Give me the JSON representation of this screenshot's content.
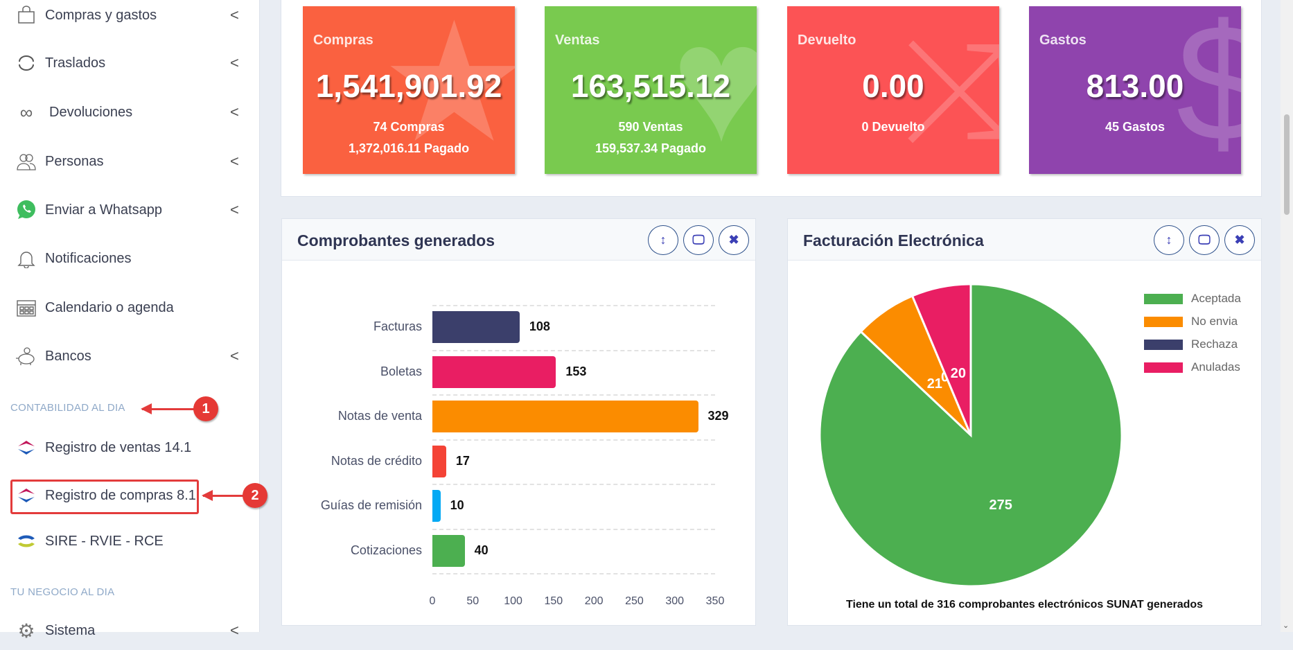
{
  "sidebar": {
    "items": [
      {
        "label": "Compras y gastos",
        "icon": "shopping-bag-icon",
        "chevron": "<"
      },
      {
        "label": "Traslados",
        "icon": "refresh-icon",
        "chevron": "<"
      },
      {
        "label": "Devoluciones",
        "icon": "infinity-icon",
        "chevron": "<"
      },
      {
        "label": "Personas",
        "icon": "users-icon",
        "chevron": "<"
      },
      {
        "label": "Enviar a Whatsapp",
        "icon": "whatsapp-icon",
        "chevron": "<"
      },
      {
        "label": "Notificaciones",
        "icon": "bell-icon"
      },
      {
        "label": "Calendario o agenda",
        "icon": "calendar-icon"
      },
      {
        "label": "Bancos",
        "icon": "piggy-bank-icon",
        "chevron": "<"
      }
    ],
    "section1": "CONTABILIDAD AL DIA",
    "accounting": [
      {
        "label": "Registro de ventas 14.1"
      },
      {
        "label": "Registro de compras 8.1"
      },
      {
        "label": "SIRE - RVIE - RCE"
      }
    ],
    "section2": "TU NEGOCIO AL DIA",
    "partial": "Sistema",
    "annotations": [
      "1",
      "2"
    ]
  },
  "cards": [
    {
      "title": "Compras",
      "value": "1,541,901.92",
      "line1": "74 Compras",
      "line2": "1,372,016.11 Pagado",
      "color": "#fa6140",
      "icon": "star-icon"
    },
    {
      "title": "Ventas",
      "value": "163,515.12",
      "line1": "590 Ventas",
      "line2": "159,537.34 Pagado",
      "color": "#79ca4f",
      "icon": "heart-icon"
    },
    {
      "title": "Devuelto",
      "value": "0.00",
      "line1": "0 Devuelto",
      "line2": "",
      "color": "#fc5355",
      "icon": "shuffle-icon"
    },
    {
      "title": "Gastos",
      "value": "813.00",
      "line1": "45 Gastos",
      "line2": "",
      "color": "#8f44ad",
      "icon": "dollar-icon"
    }
  ],
  "chart_data": [
    {
      "type": "bar",
      "title": "Comprobantes generados",
      "orientation": "horizontal",
      "categories": [
        "Facturas",
        "Boletas",
        "Notas de venta",
        "Notas de crédito",
        "Guías de remisión",
        "Cotizaciones"
      ],
      "values": [
        108,
        153,
        329,
        17,
        10,
        40
      ],
      "colors": [
        "#3b3f6b",
        "#e91e63",
        "#fb8c00",
        "#f44336",
        "#03a9f4",
        "#4caf50"
      ],
      "xlim": [
        0,
        350
      ],
      "xticks": [
        "0",
        "50",
        "100",
        "150",
        "200",
        "250",
        "300",
        "350"
      ],
      "grid": true
    },
    {
      "type": "pie",
      "title": "Facturación Electrónica",
      "labels": [
        "Aceptadas",
        "No enviados",
        "Rechazados",
        "Anuladas"
      ],
      "legend_visible": [
        "Aceptada",
        "No envia",
        "Rechaza",
        "Anuladas"
      ],
      "values": [
        275,
        21,
        0,
        20
      ],
      "colors": [
        "#4caf50",
        "#fb8c00",
        "#3b3f6b",
        "#e91e63"
      ],
      "legend": "right",
      "caption": "Tiene un total de 316 comprobantes electrónicos SUNAT generados"
    }
  ]
}
